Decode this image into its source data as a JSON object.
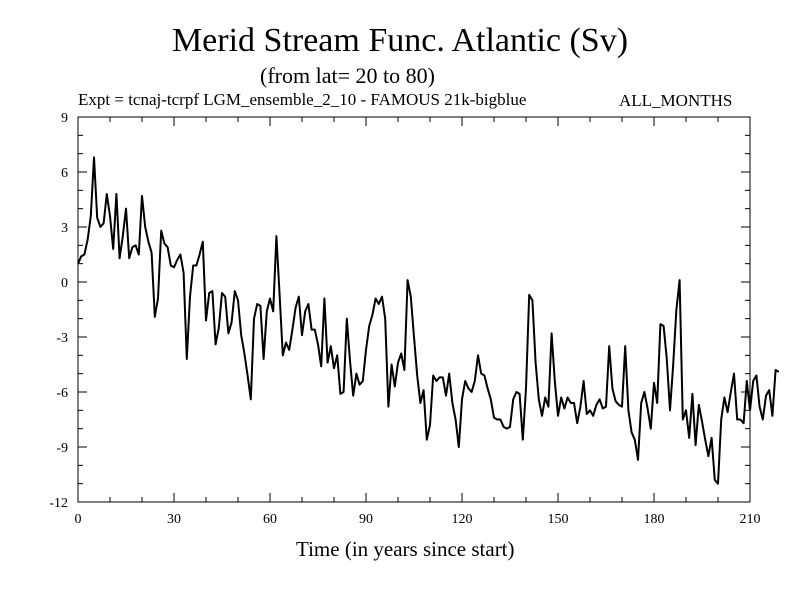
{
  "chart_data": {
    "type": "line",
    "title": "Merid Stream Func. Atlantic (Sv)",
    "subtitle": "(from lat= 20 to 80)",
    "experiment": "Expt = tcnaj-tcrpf LGM_ensemble_2_10 - FAMOUS 21k-bigblue",
    "months": "ALL_MONTHS",
    "xlabel": "Time (in years since start)",
    "ylabel": "",
    "xlim": [
      0,
      210
    ],
    "ylim": [
      -12,
      9
    ],
    "xticks": [
      0,
      30,
      60,
      90,
      120,
      150,
      180,
      210
    ],
    "yticks": [
      9,
      6,
      3,
      0,
      -3,
      -6,
      -9,
      -12
    ],
    "xtick_labels": [
      "0",
      "30",
      "60",
      "90",
      "120",
      "150",
      "180",
      "210"
    ],
    "ytick_labels": [
      "9",
      "6",
      "3",
      "0",
      "-3",
      "-6",
      "-9",
      "-12"
    ],
    "series": [
      {
        "name": "Merid Stream Func. Atlantic",
        "x_start": 0,
        "x_step": 1,
        "values": [
          1.0,
          1.4,
          1.5,
          2.3,
          3.6,
          6.8,
          3.5,
          3.0,
          3.2,
          4.8,
          3.6,
          1.8,
          4.8,
          1.3,
          2.5,
          4.0,
          1.3,
          1.9,
          2.0,
          1.5,
          4.7,
          3.0,
          2.2,
          1.6,
          -1.9,
          -0.9,
          2.8,
          2.1,
          1.9,
          0.9,
          0.8,
          1.2,
          1.5,
          0.5,
          -4.2,
          -0.8,
          0.9,
          0.9,
          1.5,
          2.2,
          -2.1,
          -0.6,
          -0.5,
          -3.4,
          -2.5,
          -0.6,
          -0.8,
          -2.8,
          -2.2,
          -0.5,
          -1.0,
          -2.9,
          -3.9,
          -5.1,
          -6.4,
          -2.0,
          -1.2,
          -1.3,
          -4.2,
          -1.6,
          -0.9,
          -1.6,
          2.5,
          -0.7,
          -4.0,
          -3.3,
          -3.7,
          -2.6,
          -1.4,
          -0.8,
          -2.9,
          -1.6,
          -1.2,
          -2.6,
          -2.6,
          -3.4,
          -4.6,
          -0.9,
          -4.4,
          -3.5,
          -4.7,
          -4.0,
          -6.1,
          -6.0,
          -2.0,
          -4.3,
          -6.2,
          -5.0,
          -5.6,
          -5.4,
          -3.7,
          -2.4,
          -1.8,
          -0.9,
          -1.2,
          -0.8,
          -2.0,
          -6.8,
          -4.5,
          -5.7,
          -4.4,
          -3.9,
          -4.8,
          0.1,
          -0.8,
          -3.0,
          -5.1,
          -6.6,
          -5.9,
          -8.6,
          -7.8,
          -5.1,
          -5.4,
          -5.2,
          -5.2,
          -6.2,
          -5.0,
          -6.6,
          -7.5,
          -9.0,
          -6.4,
          -5.4,
          -5.8,
          -6.0,
          -5.4,
          -4.0,
          -5.0,
          -5.1,
          -5.8,
          -6.4,
          -7.4,
          -7.5,
          -7.5,
          -7.9,
          -8.0,
          -7.9,
          -6.4,
          -6.0,
          -6.1,
          -8.6,
          -5.8,
          -0.7,
          -1.0,
          -4.4,
          -6.4,
          -7.3,
          -6.3,
          -6.8,
          -2.8,
          -5.4,
          -7.3,
          -6.3,
          -6.9,
          -6.3,
          -6.6,
          -6.6,
          -7.7,
          -6.8,
          -5.4,
          -7.2,
          -7.0,
          -7.3,
          -6.7,
          -6.4,
          -6.9,
          -6.8,
          -3.5,
          -5.8,
          -6.5,
          -6.7,
          -6.8,
          -3.5,
          -7.0,
          -8.2,
          -8.6,
          -9.7,
          -6.6,
          -6.0,
          -6.9,
          -8.0,
          -5.5,
          -6.6,
          -2.3,
          -2.4,
          -4.2,
          -7.0,
          -4.5,
          -1.5,
          0.1,
          -7.5,
          -7.0,
          -8.5,
          -6.1,
          -8.9,
          -6.7,
          -7.6,
          -8.6,
          -9.5,
          -8.5,
          -10.8,
          -11.0,
          -7.5,
          -6.3,
          -7.1,
          -6.0,
          -5.0,
          -7.5,
          -7.5,
          -7.7,
          -5.4,
          -7.0,
          -5.4,
          -5.1,
          -6.8,
          -7.5,
          -6.2,
          -5.9,
          -7.3,
          -4.8,
          -4.9
        ]
      }
    ]
  }
}
